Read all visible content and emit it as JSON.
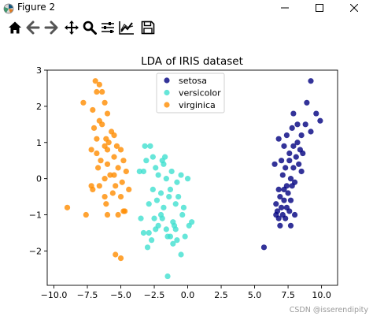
{
  "window": {
    "title": "Figure 2",
    "controls": [
      "minimize",
      "maximize",
      "close"
    ]
  },
  "toolbar": {
    "tools": [
      "home-icon",
      "back-arrow-icon",
      "forward-arrow-icon",
      "pan-icon",
      "zoom-icon",
      "subplots-icon",
      "edit-axis-icon",
      "save-icon"
    ]
  },
  "chart_data": {
    "type": "scatter",
    "title": "LDA of IRIS dataset",
    "xlabel": "",
    "ylabel": "",
    "xlim": [
      -10.5,
      11.2
    ],
    "ylim": [
      -2.95,
      3.0
    ],
    "xticks": [
      -10.0,
      -7.5,
      -5.0,
      -2.5,
      0.0,
      2.5,
      5.0,
      7.5,
      10.0
    ],
    "xtick_labels": [
      "−10.0",
      "−7.5",
      "−5.0",
      "−2.5",
      "0.0",
      "2.5",
      "5.0",
      "7.5",
      "10.0"
    ],
    "yticks": [
      -2,
      -1,
      0,
      1,
      2,
      3
    ],
    "ytick_labels": [
      "−2",
      "−1",
      "0",
      "1",
      "2",
      "3"
    ],
    "grid": false,
    "legend_position": "top-center",
    "series": [
      {
        "name": "setosa",
        "color": "#000080",
        "points": [
          [
            9.2,
            2.7
          ],
          [
            8.9,
            2.1
          ],
          [
            9.6,
            1.8
          ],
          [
            9.9,
            1.6
          ],
          [
            8.2,
            1.5
          ],
          [
            7.8,
            1.4
          ],
          [
            9.2,
            1.3
          ],
          [
            7.4,
            1.2
          ],
          [
            8.5,
            1.2
          ],
          [
            6.8,
            1.1
          ],
          [
            8.2,
            1.0
          ],
          [
            7.2,
            0.9
          ],
          [
            7.9,
            0.9
          ],
          [
            8.4,
            0.8
          ],
          [
            7.6,
            0.7
          ],
          [
            8.1,
            0.6
          ],
          [
            7.0,
            0.5
          ],
          [
            7.6,
            0.5
          ],
          [
            8.3,
            0.4
          ],
          [
            6.5,
            0.4
          ],
          [
            7.3,
            0.3
          ],
          [
            7.9,
            0.3
          ],
          [
            8.5,
            0.2
          ],
          [
            7.1,
            0.1
          ],
          [
            7.7,
            0.0
          ],
          [
            8.0,
            -0.1
          ],
          [
            7.4,
            -0.2
          ],
          [
            6.8,
            -0.3
          ],
          [
            7.8,
            -0.2
          ],
          [
            7.5,
            -0.4
          ],
          [
            6.9,
            -0.5
          ],
          [
            7.2,
            -0.6
          ],
          [
            6.6,
            -0.7
          ],
          [
            7.0,
            -0.8
          ],
          [
            7.4,
            -0.8
          ],
          [
            6.7,
            -0.9
          ],
          [
            7.1,
            -1.0
          ],
          [
            6.8,
            -1.1
          ],
          [
            7.6,
            -0.9
          ],
          [
            7.3,
            -1.1
          ],
          [
            6.9,
            -1.3
          ],
          [
            8.0,
            -1.0
          ],
          [
            7.7,
            -1.3
          ],
          [
            6.6,
            -1.0
          ],
          [
            7.2,
            -0.3
          ],
          [
            7.7,
            -0.6
          ],
          [
            8.6,
            0.7
          ],
          [
            8.8,
            1.5
          ],
          [
            7.9,
            1.8
          ],
          [
            5.7,
            -1.9
          ]
        ]
      },
      {
        "name": "versicolor",
        "color": "#40e0d0",
        "points": [
          [
            -1.5,
            -2.7
          ],
          [
            -3.5,
            -1.1
          ],
          [
            -2.9,
            -1.5
          ],
          [
            -2.5,
            -1.1
          ],
          [
            -3.3,
            -1.5
          ],
          [
            -3.0,
            -1.9
          ],
          [
            -2.7,
            -1.7
          ],
          [
            -2.4,
            -1.4
          ],
          [
            -2.2,
            -1.3
          ],
          [
            -2.0,
            -1.0
          ],
          [
            -1.8,
            -0.8
          ],
          [
            -1.6,
            -1.4
          ],
          [
            -1.3,
            -1.6
          ],
          [
            -1.1,
            -1.8
          ],
          [
            -0.8,
            -1.7
          ],
          [
            -0.5,
            -2.1
          ],
          [
            -0.2,
            -1.6
          ],
          [
            0.1,
            -1.3
          ],
          [
            0.3,
            -1.2
          ],
          [
            -0.4,
            -1.0
          ],
          [
            -0.9,
            -0.7
          ],
          [
            -1.4,
            -0.5
          ],
          [
            -2.0,
            -0.4
          ],
          [
            -2.6,
            -0.3
          ],
          [
            -2.9,
            -0.7
          ],
          [
            -1.3,
            -0.3
          ],
          [
            -0.8,
            -0.1
          ],
          [
            -0.5,
            0.1
          ],
          [
            0.0,
            0.0
          ],
          [
            -1.6,
            0.0
          ],
          [
            -2.2,
            0.1
          ],
          [
            -2.4,
            0.3
          ],
          [
            -1.8,
            0.4
          ],
          [
            -3.3,
            0.2
          ],
          [
            -3.6,
            0.2
          ],
          [
            -3.1,
            0.5
          ],
          [
            -2.6,
            0.6
          ],
          [
            -1.9,
            0.5
          ],
          [
            -3.2,
            0.9
          ],
          [
            -1.7,
            0.6
          ],
          [
            -2.8,
            0.9
          ],
          [
            -1.2,
            0.2
          ],
          [
            -0.7,
            -0.5
          ],
          [
            -0.3,
            -0.8
          ],
          [
            -1.1,
            -1.2
          ],
          [
            -1.9,
            -1.1
          ],
          [
            -0.9,
            -1.4
          ],
          [
            -2.3,
            -0.6
          ],
          [
            -1.0,
            -1.3
          ],
          [
            -1.5,
            -1.6
          ]
        ]
      },
      {
        "name": "virginica",
        "color": "#ff8c00",
        "points": [
          [
            -6.9,
            2.7
          ],
          [
            -6.6,
            2.6
          ],
          [
            -6.8,
            2.4
          ],
          [
            -6.4,
            2.4
          ],
          [
            -7.8,
            2.1
          ],
          [
            -6.2,
            2.1
          ],
          [
            -7.1,
            1.9
          ],
          [
            -6.0,
            1.8
          ],
          [
            -6.6,
            1.6
          ],
          [
            -6.4,
            1.5
          ],
          [
            -7.0,
            1.4
          ],
          [
            -5.7,
            1.3
          ],
          [
            -5.5,
            1.2
          ],
          [
            -6.1,
            1.1
          ],
          [
            -6.8,
            1.1
          ],
          [
            -5.9,
            1.0
          ],
          [
            -5.3,
            0.9
          ],
          [
            -6.2,
            0.9
          ],
          [
            -7.2,
            0.8
          ],
          [
            -6.0,
            0.8
          ],
          [
            -6.8,
            0.7
          ],
          [
            -5.5,
            0.6
          ],
          [
            -5.0,
            0.8
          ],
          [
            -6.5,
            0.5
          ],
          [
            -4.8,
            0.5
          ],
          [
            -6.0,
            0.4
          ],
          [
            -5.2,
            0.3
          ],
          [
            -6.7,
            0.3
          ],
          [
            -4.6,
            0.2
          ],
          [
            -5.5,
            0.1
          ],
          [
            -6.2,
            0.0
          ],
          [
            -5.8,
            0.1
          ],
          [
            -4.9,
            -0.1
          ],
          [
            -5.4,
            -0.2
          ],
          [
            -6.6,
            -0.2
          ],
          [
            -4.4,
            -0.3
          ],
          [
            -7.2,
            -0.2
          ],
          [
            -5.0,
            -0.5
          ],
          [
            -5.6,
            -0.4
          ],
          [
            -6.2,
            -0.5
          ],
          [
            -4.8,
            -0.9
          ],
          [
            -6.1,
            -0.7
          ],
          [
            -7.1,
            -0.3
          ],
          [
            -5.2,
            -1.0
          ],
          [
            -6.0,
            -1.0
          ],
          [
            -7.6,
            -1.0
          ],
          [
            -4.7,
            -0.9
          ],
          [
            -9.0,
            -0.8
          ],
          [
            -5.4,
            -2.1
          ],
          [
            -5.0,
            -2.2
          ]
        ]
      }
    ]
  },
  "watermark": "CSDN @isserendipity"
}
